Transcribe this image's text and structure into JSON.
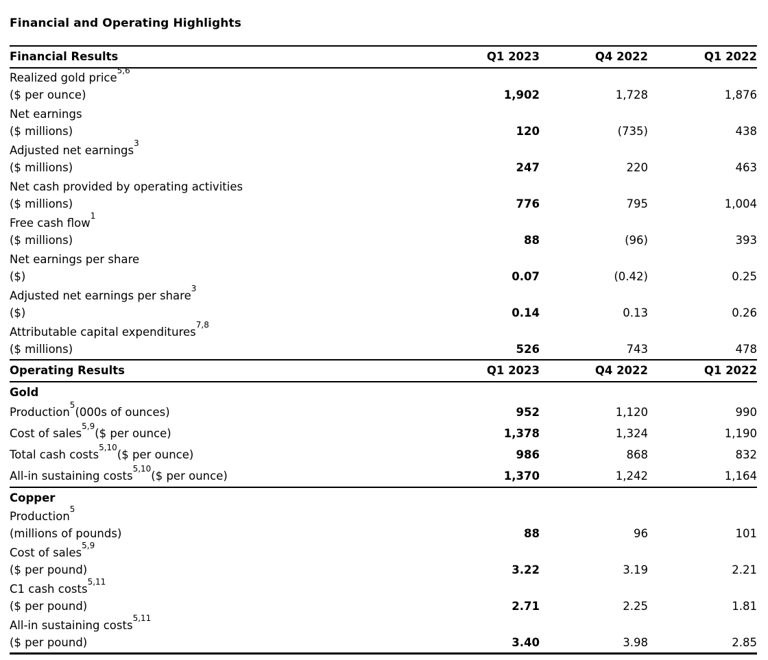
{
  "title": "Financial and Operating Highlights",
  "columns": [
    "Q1 2023",
    "Q4 2022",
    "Q1 2022"
  ],
  "financial": {
    "header": "Financial Results",
    "rows": [
      {
        "label": "Realized gold price",
        "sup": "5,6",
        "unit": "($ per ounce)",
        "values": [
          "1,902",
          "1,728",
          "1,876"
        ]
      },
      {
        "label": "Net earnings",
        "sup": "",
        "unit": "($ millions)",
        "values": [
          "120",
          "(735)",
          "438"
        ]
      },
      {
        "label": "Adjusted net earnings",
        "sup": "3",
        "unit": "($ millions)",
        "values": [
          "247",
          "220",
          "463"
        ]
      },
      {
        "label": "Net cash provided by operating activities",
        "sup": "",
        "unit": "($ millions)",
        "values": [
          "776",
          "795",
          "1,004"
        ]
      },
      {
        "label": "Free cash flow",
        "sup": "1",
        "unit": "($ millions)",
        "values": [
          "88",
          "(96)",
          "393"
        ]
      },
      {
        "label": "Net earnings per share",
        "sup": "",
        "unit": "($)",
        "values": [
          "0.07",
          "(0.42)",
          "0.25"
        ]
      },
      {
        "label": "Adjusted net earnings per share",
        "sup": "3",
        "unit": "($)",
        "values": [
          "0.14",
          "0.13",
          "0.26"
        ]
      },
      {
        "label": "Attributable capital expenditures",
        "sup": "7,8",
        "unit": "($ millions)",
        "values": [
          "526",
          "743",
          "478"
        ]
      }
    ]
  },
  "operating": {
    "header": "Operating Results",
    "gold": {
      "title": "Gold",
      "rows": [
        {
          "label": "Production",
          "sup": "5",
          "unit": "(000s of ounces)",
          "values": [
            "952",
            "1,120",
            "990"
          ]
        },
        {
          "label": "Cost of sales",
          "sup": "5,9",
          "unit": "($ per ounce)",
          "values": [
            "1,378",
            "1,324",
            "1,190"
          ]
        },
        {
          "label": "Total cash costs",
          "sup": "5,10",
          "unit": "($ per ounce)",
          "values": [
            "986",
            "868",
            "832"
          ]
        },
        {
          "label": "All-in sustaining costs",
          "sup": "5,10",
          "unit": "($ per ounce)",
          "values": [
            "1,370",
            "1,242",
            "1,164"
          ]
        }
      ]
    },
    "copper": {
      "title": "Copper",
      "rows": [
        {
          "label": "Production",
          "sup": "5",
          "unit": "(millions of pounds)",
          "values": [
            "88",
            "96",
            "101"
          ]
        },
        {
          "label": "Cost of sales",
          "sup": "5,9",
          "unit": "($ per pound)",
          "values": [
            "3.22",
            "3.19",
            "2.21"
          ]
        },
        {
          "label": "C1 cash costs",
          "sup": "5,11",
          "unit": "($ per pound)",
          "values": [
            "2.71",
            "2.25",
            "1.81"
          ]
        },
        {
          "label": "All-in sustaining costs",
          "sup": "5,11",
          "unit": "($ per pound)",
          "values": [
            "3.40",
            "3.98",
            "2.85"
          ]
        }
      ]
    }
  },
  "colors": {
    "text": "#000000",
    "background": "#ffffff",
    "rule": "#000000"
  }
}
